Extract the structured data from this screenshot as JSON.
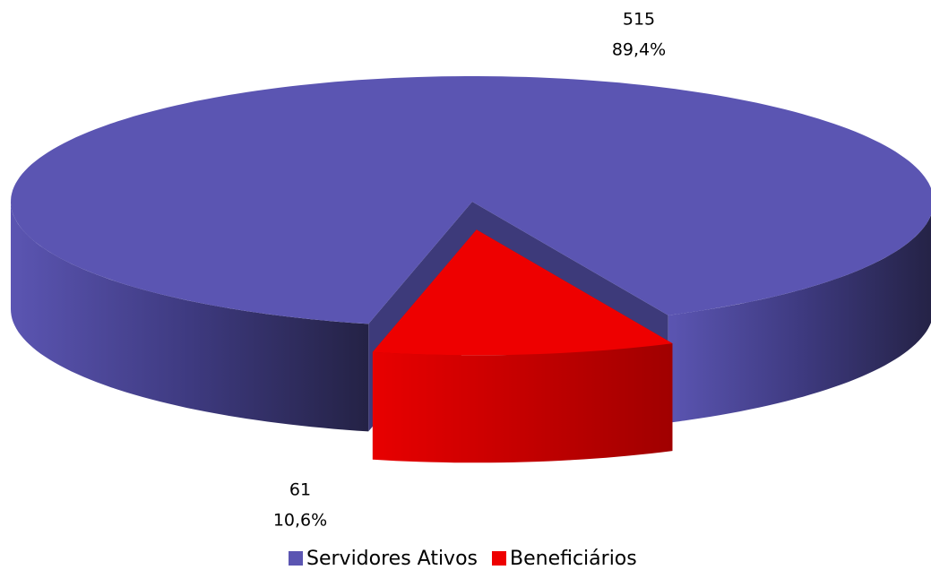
{
  "chart_data": {
    "type": "pie",
    "three_d": true,
    "categories": [
      "Servidores Ativos",
      "Beneficiários"
    ],
    "values": [
      515,
      61
    ],
    "percentages": [
      89.4,
      10.6
    ],
    "percentage_labels": [
      "89,4%",
      "10,6%"
    ],
    "colors": [
      "#5b55b2",
      "#ee0000"
    ],
    "exploded": [
      false,
      true
    ],
    "legend": "bottom"
  }
}
